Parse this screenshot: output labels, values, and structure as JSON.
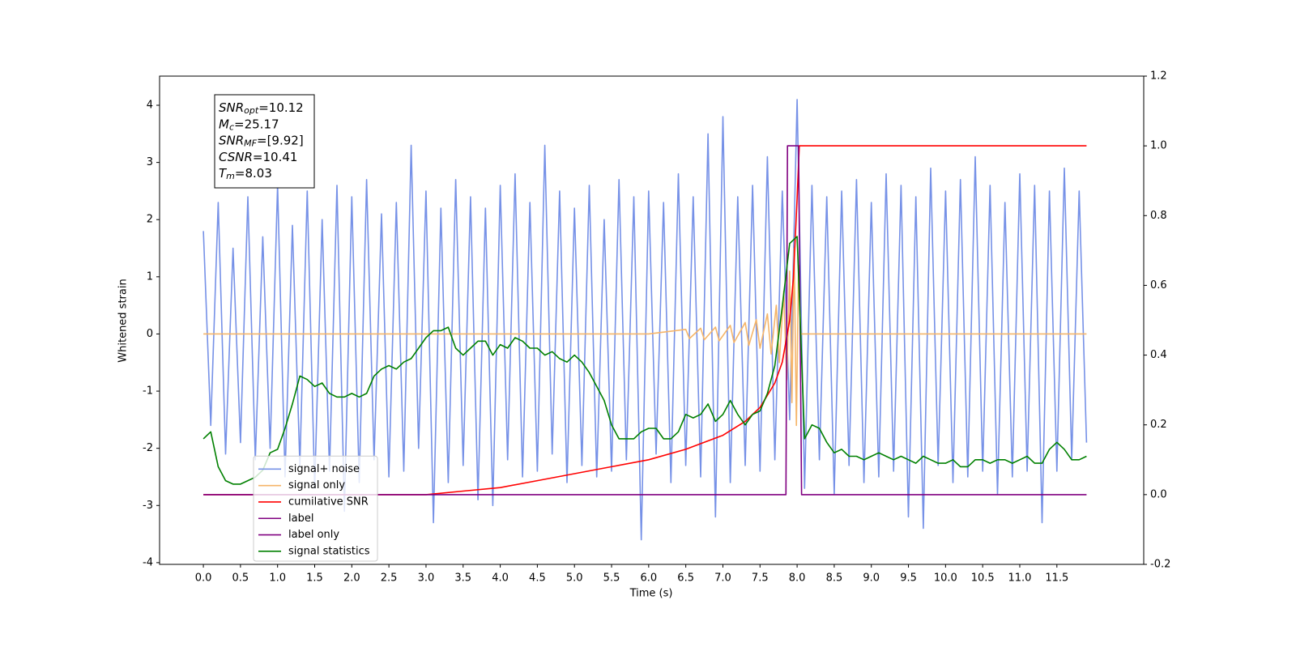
{
  "chart_data": {
    "type": "line",
    "xlabel": "Time (s)",
    "ylabel": "Whitened strain",
    "xlim": [
      -0.59,
      12.67
    ],
    "ylim": [
      -4.03,
      4.51
    ],
    "y2lim": [
      -0.2,
      1.2
    ],
    "xticks": [
      {
        "value": 0,
        "label": "0.0"
      },
      0.5,
      {
        "value": 1,
        "label": "1.0"
      },
      1.5,
      {
        "value": 2,
        "label": "2.0"
      },
      2.5,
      {
        "value": 3,
        "label": "3.0"
      },
      3.5,
      {
        "value": 4,
        "label": "4.0"
      },
      4.5,
      {
        "value": 5,
        "label": "5.0"
      },
      5.5,
      {
        "value": 6,
        "label": "6.0"
      },
      6.5,
      {
        "value": 7,
        "label": "7.0"
      },
      7.5,
      {
        "value": 8,
        "label": "8.0"
      },
      8.5,
      {
        "value": 9,
        "label": "9.0"
      },
      9.5,
      {
        "value": 10,
        "label": "10.0"
      },
      10.5,
      {
        "value": 11,
        "label": "11.0"
      },
      11.5
    ],
    "yticks": [
      -4,
      -3,
      -2,
      -1,
      0,
      1,
      2,
      3,
      4
    ],
    "y2ticks": [
      -0.2,
      {
        "value": 0,
        "label": "0.0"
      },
      0.2,
      0.4,
      0.6,
      0.8,
      {
        "value": 1,
        "label": "1.0"
      },
      1.2
    ],
    "legend_loc": "lower left",
    "annotation": [
      {
        "symbol": "SNR",
        "subscript": "opt",
        "text": "=10.12"
      },
      {
        "symbol": "M",
        "subscript": "c",
        "text": "=25.17"
      },
      {
        "symbol": "SNR",
        "subscript": "MF",
        "text": "=[9.92]"
      },
      {
        "symbol": "CSNR",
        "text": "=10.41"
      },
      {
        "symbol": "T",
        "subscript": "m",
        "text": "=8.03"
      }
    ],
    "x": [
      0.0,
      0.1,
      0.2,
      0.3,
      0.4,
      0.5,
      0.6,
      0.7,
      0.8,
      0.9,
      1.0,
      1.1,
      1.2,
      1.3,
      1.4,
      1.5,
      1.6,
      1.7,
      1.8,
      1.9,
      2.0,
      2.1,
      2.2,
      2.3,
      2.4,
      2.5,
      2.6,
      2.7,
      2.8,
      2.9,
      3.0,
      3.1,
      3.2,
      3.3,
      3.4,
      3.5,
      3.6,
      3.7,
      3.8,
      3.9,
      4.0,
      4.1,
      4.2,
      4.3,
      4.4,
      4.5,
      4.6,
      4.7,
      4.8,
      4.9,
      5.0,
      5.1,
      5.2,
      5.3,
      5.4,
      5.5,
      5.6,
      5.7,
      5.8,
      5.9,
      6.0,
      6.1,
      6.2,
      6.3,
      6.4,
      6.5,
      6.6,
      6.7,
      6.8,
      6.9,
      7.0,
      7.1,
      7.2,
      7.3,
      7.4,
      7.5,
      7.6,
      7.7,
      7.8,
      7.9,
      8.0,
      8.1,
      8.2,
      8.3,
      8.4,
      8.5,
      8.6,
      8.7,
      8.8,
      8.9,
      9.0,
      9.1,
      9.2,
      9.3,
      9.4,
      9.5,
      9.6,
      9.7,
      9.8,
      9.9,
      10.0,
      10.1,
      10.2,
      10.3,
      10.4,
      10.5,
      10.6,
      10.7,
      10.8,
      10.9,
      11.0,
      11.1,
      11.2,
      11.3,
      11.4,
      11.5,
      11.6,
      11.7,
      11.8,
      11.9
    ],
    "series": [
      {
        "name": "signal+ noise",
        "color": "#7691e7",
        "values": [
          1.8,
          -1.6,
          2.3,
          -2.1,
          1.5,
          -1.9,
          2.4,
          -2.2,
          1.7,
          -2.0,
          2.6,
          -2.5,
          1.9,
          -2.3,
          2.5,
          -2.7,
          2.0,
          -2.4,
          2.6,
          -3.1,
          2.4,
          -2.6,
          2.7,
          -2.2,
          2.1,
          -2.5,
          2.3,
          -2.4,
          3.3,
          -2.0,
          2.5,
          -3.3,
          2.2,
          -2.6,
          2.7,
          -2.3,
          2.4,
          -2.9,
          2.2,
          -3.0,
          2.6,
          -2.2,
          2.8,
          -2.5,
          2.3,
          -2.4,
          3.3,
          -2.1,
          2.5,
          -2.6,
          2.2,
          -2.3,
          2.6,
          -2.5,
          2.0,
          -2.4,
          2.7,
          -2.2,
          2.4,
          -3.6,
          2.5,
          -2.1,
          2.3,
          -2.6,
          2.8,
          -2.3,
          2.4,
          -2.5,
          3.5,
          -3.2,
          3.8,
          -2.6,
          2.4,
          -2.3,
          2.6,
          -2.4,
          3.1,
          -2.2,
          2.5,
          -1.5,
          4.1,
          -2.7,
          2.6,
          -2.2,
          2.4,
          -2.8,
          2.5,
          -2.3,
          2.7,
          -2.6,
          2.3,
          -2.5,
          2.8,
          -2.4,
          2.6,
          -3.2,
          2.4,
          -3.4,
          2.9,
          -2.3,
          2.5,
          -2.6,
          2.7,
          -2.5,
          3.1,
          -2.4,
          2.6,
          -2.8,
          2.3,
          -2.5,
          2.8,
          -2.4,
          2.6,
          -3.3,
          2.5,
          -2.4,
          2.9,
          -2.2,
          2.5,
          -1.9
        ]
      },
      {
        "name": "signal only",
        "color": "#f5b56a",
        "x": [
          0,
          6.0,
          6.5,
          6.55,
          6.7,
          6.75,
          6.9,
          6.95,
          7.1,
          7.15,
          7.3,
          7.35,
          7.45,
          7.5,
          7.6,
          7.65,
          7.72,
          7.76,
          7.82,
          7.86,
          7.9,
          7.93,
          7.96,
          7.99,
          8.02,
          8.05,
          11.9
        ],
        "values": [
          0,
          0,
          0.08,
          -0.08,
          0.1,
          -0.1,
          0.12,
          -0.12,
          0.15,
          -0.15,
          0.2,
          -0.2,
          0.25,
          -0.25,
          0.35,
          -0.35,
          0.5,
          -0.5,
          0.75,
          -0.8,
          1.1,
          -1.2,
          1.5,
          -1.6,
          1.2,
          0,
          0
        ]
      },
      {
        "name": "cumilative SNR",
        "color": "#ff0000",
        "axis": "y2",
        "x": [
          0,
          3.0,
          3.5,
          4.0,
          4.5,
          5.0,
          5.5,
          6.0,
          6.5,
          7.0,
          7.3,
          7.5,
          7.7,
          7.8,
          7.9,
          7.95,
          8.0,
          8.03,
          11.9
        ],
        "values": [
          0,
          0,
          0.01,
          0.02,
          0.04,
          0.06,
          0.08,
          0.1,
          0.13,
          0.17,
          0.21,
          0.25,
          0.32,
          0.38,
          0.5,
          0.62,
          0.85,
          1.0,
          1.0
        ]
      },
      {
        "name": "label",
        "color": "#800080",
        "axis": "y2",
        "x": [
          0,
          7.85,
          7.87,
          8.02,
          8.06,
          11.9
        ],
        "values": [
          0,
          0,
          1,
          1,
          0,
          0
        ]
      },
      {
        "name": "label only",
        "color": "#800080",
        "axis": "y2",
        "x": [],
        "values": []
      },
      {
        "name": "signal statistics",
        "color": "#008000",
        "axis": "y2",
        "values": [
          0.16,
          0.18,
          0.08,
          0.04,
          0.03,
          0.03,
          0.04,
          0.05,
          0.07,
          0.12,
          0.13,
          0.19,
          0.26,
          0.34,
          0.33,
          0.31,
          0.32,
          0.29,
          0.28,
          0.28,
          0.29,
          0.28,
          0.29,
          0.34,
          0.36,
          0.37,
          0.36,
          0.38,
          0.39,
          0.42,
          0.45,
          0.47,
          0.47,
          0.48,
          0.42,
          0.4,
          0.42,
          0.44,
          0.44,
          0.4,
          0.43,
          0.42,
          0.45,
          0.44,
          0.42,
          0.42,
          0.4,
          0.41,
          0.39,
          0.38,
          0.4,
          0.38,
          0.35,
          0.31,
          0.27,
          0.2,
          0.16,
          0.16,
          0.16,
          0.18,
          0.19,
          0.19,
          0.16,
          0.16,
          0.18,
          0.23,
          0.22,
          0.23,
          0.26,
          0.21,
          0.23,
          0.27,
          0.23,
          0.2,
          0.23,
          0.24,
          0.29,
          0.37,
          0.54,
          0.72,
          0.74,
          0.16,
          0.2,
          0.19,
          0.15,
          0.12,
          0.13,
          0.11,
          0.11,
          0.1,
          0.11,
          0.12,
          0.11,
          0.1,
          0.11,
          0.1,
          0.09,
          0.11,
          0.1,
          0.09,
          0.09,
          0.1,
          0.08,
          0.08,
          0.1,
          0.1,
          0.09,
          0.1,
          0.1,
          0.09,
          0.1,
          0.11,
          0.09,
          0.09,
          0.13,
          0.15,
          0.13,
          0.1,
          0.1,
          0.11
        ]
      }
    ]
  }
}
